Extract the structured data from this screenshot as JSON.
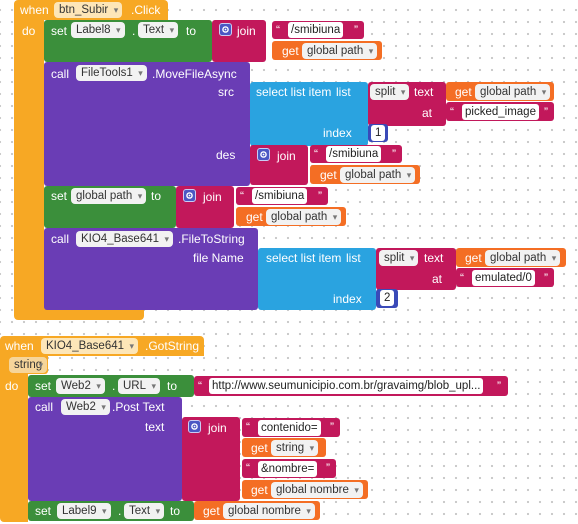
{
  "event1": {
    "when": "when",
    "component": "btn_Subir",
    "event": ".Click",
    "do": "do",
    "set1": {
      "set": "set",
      "component": "Label8",
      "dot": ".",
      "prop": "Text",
      "to": "to",
      "join": "join",
      "str": "/smibiuna",
      "get": "get",
      "var": "global path"
    },
    "call1": {
      "call": "call",
      "component": "FileTools1",
      "method": ".MoveFileAsync",
      "src": "src",
      "src_select": {
        "label": "select list item",
        "list": "list",
        "split": "split",
        "text": "text",
        "get": "get",
        "var": "global path",
        "at": "at",
        "at_str": "picked_image",
        "index": "index",
        "index_val": "1"
      },
      "des": "des",
      "des_join": {
        "join": "join",
        "str": "/smibiuna",
        "get": "get",
        "var": "global path"
      }
    },
    "set2": {
      "set": "set",
      "var": "global path",
      "to": "to",
      "join": "join",
      "str": "/smibiuna",
      "get": "get",
      "gvar": "global path"
    },
    "call2": {
      "call": "call",
      "component": "KIO4_Base641",
      "method": ".FileToString",
      "file_name": "file Name",
      "select": {
        "label": "select list item",
        "list": "list",
        "split": "split",
        "text": "text",
        "get": "get",
        "var": "global path",
        "at": "at",
        "at_str": "emulated/0",
        "index": "index",
        "index_val": "2"
      }
    }
  },
  "event2": {
    "when": "when",
    "component": "KIO4_Base641",
    "event": ".GotString",
    "param": "string",
    "do": "do",
    "set1": {
      "set": "set",
      "component": "Web2",
      "dot": ".",
      "prop": "URL",
      "to": "to",
      "str": "http://www.seumunicipio.com.br/gravaimg/blob_upl..."
    },
    "call": {
      "call": "call",
      "component": "Web2",
      "method": ".Post Text",
      "text": "text",
      "join": "join",
      "str1": "contenido=",
      "get1": "get",
      "var1": "string",
      "str2": "&nombre=",
      "get2": "get",
      "var2": "global nombre"
    },
    "set2": {
      "set": "set",
      "component": "Label9",
      "dot": ".",
      "prop": "Text",
      "to": "to",
      "get": "get",
      "var": "global nombre"
    }
  },
  "colors": {
    "event": "#f7a824",
    "set": "#3b8f3b",
    "call": "#6a3db5",
    "text": "#c2185b",
    "variable": "#f46e24",
    "list": "#2aa3e0",
    "math": "#3a4ab8"
  }
}
